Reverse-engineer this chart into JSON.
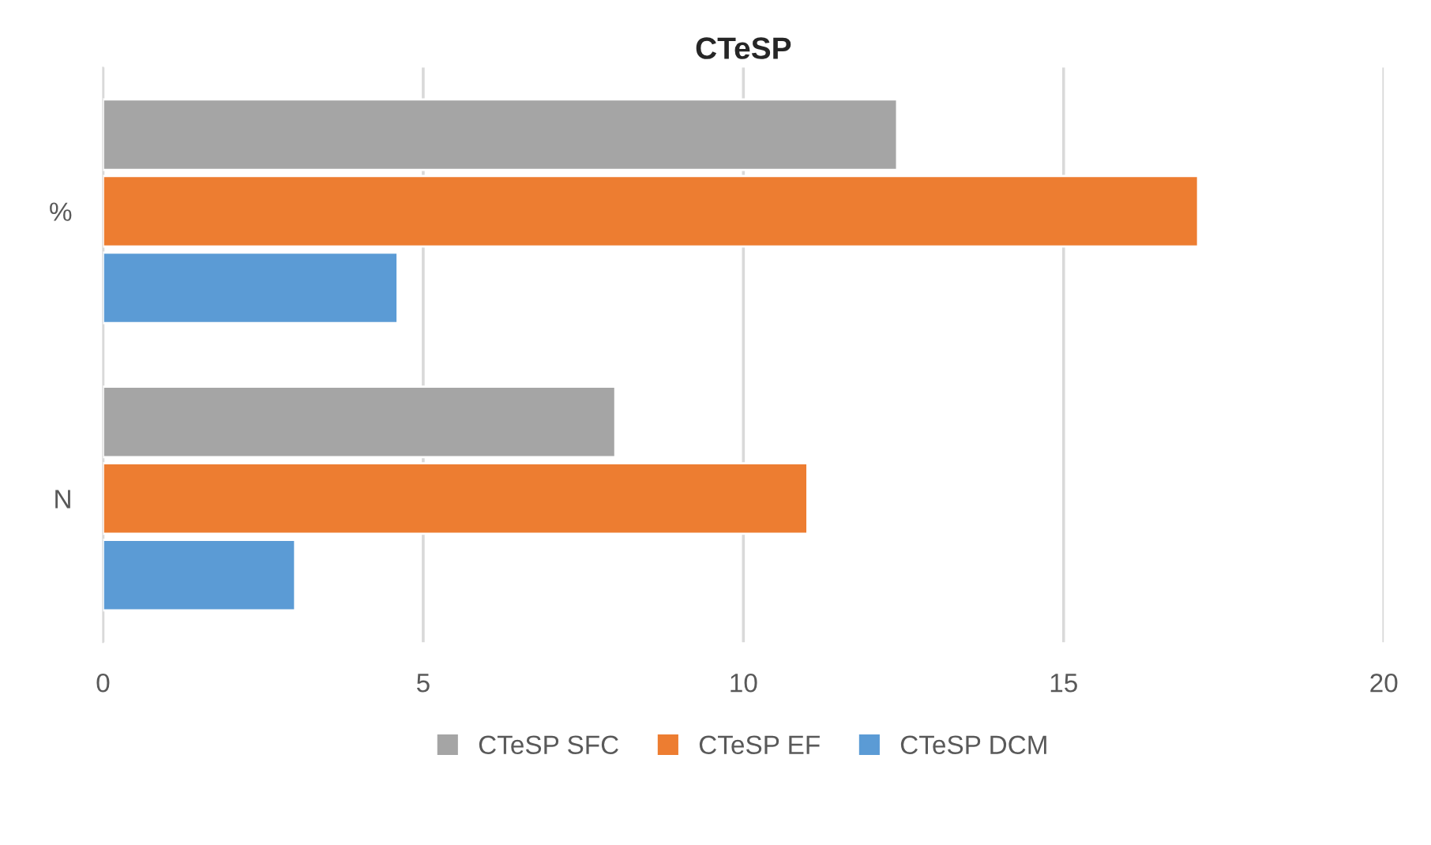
{
  "chart_data": {
    "type": "bar",
    "orientation": "horizontal",
    "title": "CTeSP",
    "categories": [
      "%",
      "N"
    ],
    "series": [
      {
        "name": "CTeSP SFC",
        "color": "#a5a5a5",
        "values": [
          12.4,
          8
        ]
      },
      {
        "name": "CTeSP EF",
        "color": "#ed7d31",
        "values": [
          17.1,
          11
        ]
      },
      {
        "name": "CTeSP DCM",
        "color": "#5b9bd5",
        "values": [
          4.6,
          3
        ]
      }
    ],
    "xlim": [
      0,
      20
    ],
    "xticks": [
      0,
      5,
      10,
      15,
      20
    ],
    "grid": "x",
    "legend": "bottom"
  }
}
